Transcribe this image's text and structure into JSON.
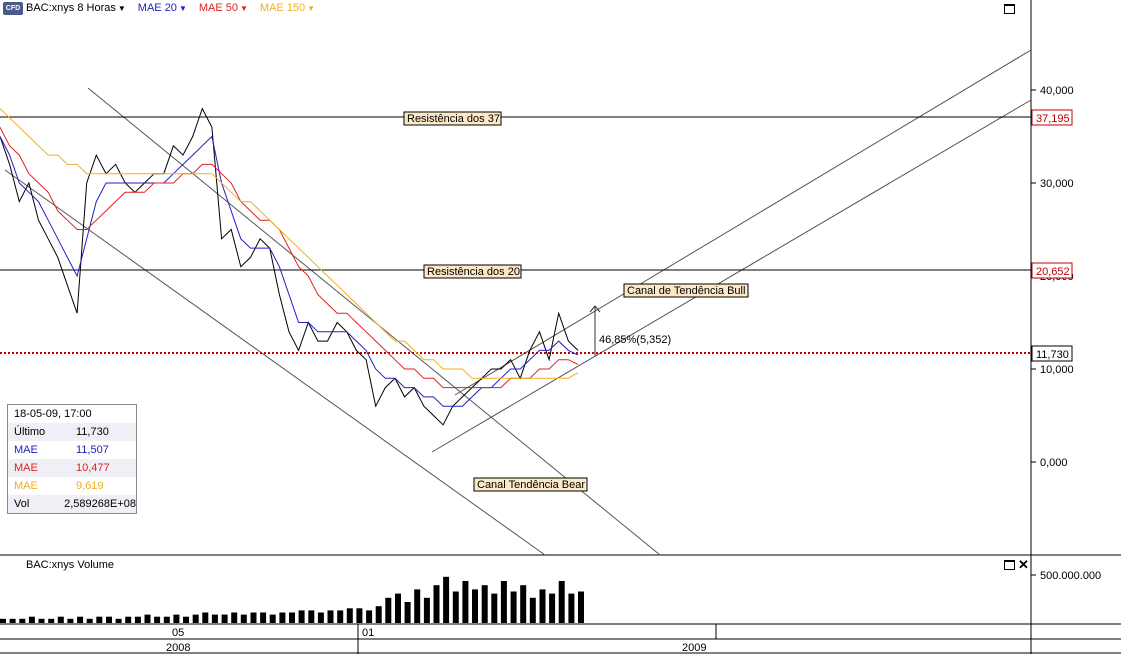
{
  "header": {
    "symbol": "BAC:xnys 8 Horas",
    "mae20": "MAE 20",
    "mae50": "MAE 50",
    "mae150": "MAE 150",
    "logo": "CFD",
    "colors": {
      "mae20": "#2020c0",
      "mae50": "#e02020",
      "mae150": "#f0b020"
    }
  },
  "info_box": {
    "date": "18-05-09, 17:00",
    "rows": [
      {
        "label": "Último",
        "value": "11,730",
        "color": "#000000"
      },
      {
        "label": "MAE",
        "value": "11,507",
        "color": "#2020c0"
      },
      {
        "label": "MAE",
        "value": "10,477",
        "color": "#e02020"
      },
      {
        "label": "MAE",
        "value": "9,619",
        "color": "#f0b020"
      },
      {
        "label": "Vol",
        "value": "2,589268E+08",
        "color": "#000000"
      }
    ]
  },
  "annotations": {
    "res37": "Resistência dos 37",
    "res20": "Resistência dos 20",
    "bull": "Canal de Tendência Bull",
    "bear": "Canal Tendência Bear",
    "measure": "46,85%(5,352)"
  },
  "price_labels": {
    "res37": "37,195",
    "res20": "20,652",
    "last": "11,730"
  },
  "volume": {
    "title": "BAC:xnys Volume",
    "axis_label": "500.000.000"
  },
  "time_axis": {
    "month_05": "05",
    "month_01": "01",
    "year_2008": "2008",
    "year_2009": "2009"
  },
  "chart_data": {
    "type": "line",
    "ylim": [
      -10,
      50
    ],
    "y_ticks": [
      0,
      10,
      20,
      30,
      40
    ],
    "y_tick_labels": [
      "0,000",
      "10,000",
      "20,000",
      "30,000",
      "40,000"
    ],
    "horizontal_lines": [
      {
        "value": 37.195,
        "label": "Resistência dos 37"
      },
      {
        "value": 20.652,
        "label": "Resistência dos 20"
      },
      {
        "value": 11.73,
        "style": "dotted",
        "color": "#c00000"
      }
    ],
    "series": [
      {
        "name": "BAC:xnys 8 Horas",
        "color": "#000000",
        "values": [
          35,
          32,
          28,
          30,
          26,
          24,
          22,
          19,
          16,
          30,
          33,
          31,
          32,
          30,
          29,
          30,
          31,
          31,
          34,
          33,
          35,
          38,
          36,
          24,
          25,
          21,
          22,
          24,
          23,
          18,
          14,
          12,
          15,
          13,
          13,
          15,
          14,
          12,
          11,
          6,
          8,
          9,
          7,
          8,
          6,
          5,
          4,
          6,
          7,
          8,
          9,
          10,
          10,
          11,
          9,
          12,
          14,
          11,
          16,
          13,
          12
        ]
      },
      {
        "name": "MAE 20",
        "color": "#2020c0",
        "values": [
          35,
          33,
          30,
          29,
          28,
          26,
          24,
          22,
          20,
          24,
          28,
          30,
          30,
          30,
          30,
          30,
          30,
          30,
          31,
          32,
          33,
          34,
          35,
          30,
          27,
          24,
          23,
          23,
          23,
          21,
          18,
          15,
          15,
          14,
          14,
          14,
          14,
          13,
          12,
          10,
          9,
          9,
          8,
          8,
          7,
          7,
          6,
          6,
          6,
          7,
          8,
          8,
          9,
          10,
          10,
          11,
          12,
          12,
          13,
          12,
          11.5
        ]
      },
      {
        "name": "MAE 50",
        "color": "#e02020",
        "values": [
          36,
          34,
          33,
          31,
          30,
          29,
          27,
          26,
          25,
          25,
          26,
          27,
          28,
          29,
          29,
          29,
          30,
          30,
          30,
          31,
          31,
          32,
          32,
          31,
          30,
          28,
          27,
          26,
          26,
          25,
          23,
          21,
          20,
          18,
          17,
          16,
          16,
          15,
          14,
          13,
          12,
          11,
          10,
          10,
          9,
          9,
          8,
          8,
          8,
          8,
          8,
          8,
          8,
          9,
          9,
          9,
          10,
          10,
          11,
          11,
          10.5
        ]
      },
      {
        "name": "MAE 150",
        "color": "#f0b020",
        "values": [
          38,
          37,
          36,
          35,
          34,
          33,
          33,
          32,
          32,
          31,
          31,
          31,
          31,
          31,
          31,
          31,
          31,
          31,
          31,
          31,
          31,
          31,
          31,
          30,
          29,
          28,
          28,
          27,
          26,
          25,
          24,
          23,
          22,
          21,
          20,
          19,
          18,
          17,
          16,
          15,
          14,
          13,
          13,
          12,
          11,
          11,
          10,
          10,
          10,
          9,
          9,
          9,
          9,
          9,
          9,
          9,
          9,
          9,
          9,
          9,
          9.6
        ]
      }
    ],
    "volume_values": [
      2,
      2,
      2,
      3,
      2,
      2,
      3,
      2,
      3,
      2,
      3,
      3,
      2,
      3,
      3,
      4,
      3,
      3,
      4,
      3,
      4,
      5,
      4,
      4,
      5,
      4,
      5,
      5,
      4,
      5,
      5,
      6,
      6,
      5,
      6,
      6,
      7,
      7,
      6,
      8,
      12,
      14,
      10,
      16,
      12,
      18,
      22,
      15,
      20,
      16,
      18,
      14,
      20,
      15,
      18,
      12,
      16,
      14,
      20,
      14,
      15
    ],
    "volume_max": 30,
    "time_labels": [
      "05",
      "01",
      "2008",
      "2009"
    ]
  }
}
